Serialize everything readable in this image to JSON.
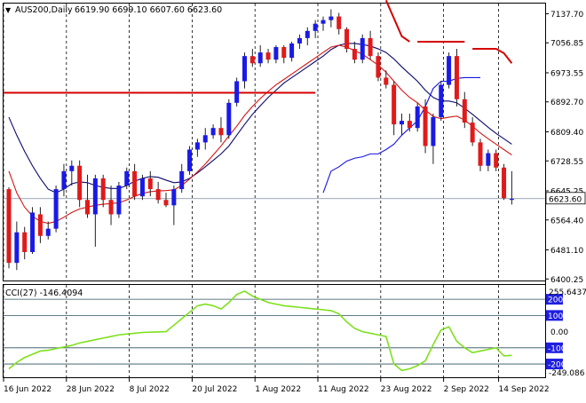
{
  "window": {
    "symbol_label": "AUS200,Daily",
    "ohlc_label": "6619.90 6699.10 6607.60 6623.60",
    "current_price": "6623.60"
  },
  "indicator": {
    "label": "CCI(27) -146.4094",
    "max_label": "255.6437",
    "min_label": "-249.086",
    "levels": [
      "200",
      "100",
      "0.00",
      "-100",
      "-200"
    ]
  },
  "colors": {
    "bull": "#1a1ae6",
    "bear": "#e01a1a",
    "sma_fast": "#0a0a6e",
    "ema_red": "#d41515",
    "stop_up": "#1414e0",
    "stop_down": "#d40000",
    "cci": "#7ee01e",
    "level_badge": "#1f1fe0"
  },
  "chart_data": {
    "type": "candlestick",
    "timeframe": "Daily",
    "y_ticks": [
      "7137.70",
      "7056.85",
      "6973.55",
      "6892.70",
      "6809.40",
      "6728.55",
      "6645.25",
      "6564.40",
      "6481.10",
      "6400.25"
    ],
    "y_range": [
      6396,
      7166
    ],
    "x_labels": [
      "16 Jun 2022",
      "28 Jun 2022",
      "8 Jul 2022",
      "20 Jul 2022",
      "1 Aug 2022",
      "11 Aug 2022",
      "23 Aug 2022",
      "2 Sep 2022",
      "14 Sep 2022"
    ],
    "candles": [
      [
        6650,
        6655,
        6430,
        6445
      ],
      [
        6445,
        6560,
        6425,
        6530
      ],
      [
        6530,
        6545,
        6455,
        6475
      ],
      [
        6475,
        6600,
        6470,
        6585
      ],
      [
        6580,
        6600,
        6500,
        6520
      ],
      [
        6520,
        6560,
        6510,
        6540
      ],
      [
        6540,
        6660,
        6530,
        6650
      ],
      [
        6650,
        6720,
        6630,
        6700
      ],
      [
        6700,
        6730,
        6660,
        6715
      ],
      [
        6715,
        6730,
        6600,
        6620
      ],
      [
        6620,
        6690,
        6570,
        6580
      ],
      [
        6580,
        6690,
        6490,
        6680
      ],
      [
        6680,
        6690,
        6600,
        6620
      ],
      [
        6620,
        6660,
        6550,
        6580
      ],
      [
        6580,
        6670,
        6570,
        6660
      ],
      [
        6660,
        6710,
        6650,
        6700
      ],
      [
        6700,
        6720,
        6620,
        6630
      ],
      [
        6630,
        6690,
        6620,
        6680
      ],
      [
        6680,
        6700,
        6630,
        6650
      ],
      [
        6650,
        6670,
        6610,
        6620
      ],
      [
        6620,
        6640,
        6600,
        6605
      ],
      [
        6605,
        6660,
        6550,
        6650
      ],
      [
        6650,
        6720,
        6640,
        6700
      ],
      [
        6700,
        6770,
        6690,
        6760
      ],
      [
        6760,
        6790,
        6740,
        6780
      ],
      [
        6780,
        6820,
        6760,
        6800
      ],
      [
        6800,
        6830,
        6790,
        6820
      ],
      [
        6820,
        6850,
        6780,
        6800
      ],
      [
        6800,
        6900,
        6790,
        6890
      ],
      [
        6890,
        6960,
        6880,
        6950
      ],
      [
        6950,
        7030,
        6930,
        7020
      ],
      [
        7020,
        7040,
        6990,
        7000
      ],
      [
        7000,
        7050,
        6990,
        7030
      ],
      [
        7030,
        7040,
        7000,
        7010
      ],
      [
        7010,
        7050,
        7000,
        7045
      ],
      [
        7045,
        7050,
        7000,
        7015
      ],
      [
        7015,
        7060,
        7005,
        7055
      ],
      [
        7055,
        7080,
        7040,
        7070
      ],
      [
        7070,
        7100,
        7050,
        7090
      ],
      [
        7090,
        7120,
        7070,
        7110
      ],
      [
        7110,
        7130,
        7090,
        7120
      ],
      [
        7120,
        7150,
        7100,
        7130
      ],
      [
        7130,
        7140,
        7080,
        7095
      ],
      [
        7095,
        7100,
        7030,
        7040
      ],
      [
        7040,
        7060,
        7000,
        7010
      ],
      [
        7010,
        7080,
        7000,
        7070
      ],
      [
        7070,
        7090,
        7010,
        7020
      ],
      [
        7020,
        7030,
        6950,
        6960
      ],
      [
        6960,
        6980,
        6930,
        6940
      ],
      [
        6940,
        6950,
        6800,
        6830
      ],
      [
        6830,
        6860,
        6800,
        6840
      ],
      [
        6840,
        6860,
        6810,
        6820
      ],
      [
        6820,
        6890,
        6810,
        6880
      ],
      [
        6880,
        6900,
        6750,
        6770
      ],
      [
        6770,
        6860,
        6720,
        6850
      ],
      [
        6850,
        6950,
        6840,
        6940
      ],
      [
        6940,
        7030,
        6930,
        7020
      ],
      [
        7020,
        7040,
        6880,
        6900
      ],
      [
        6900,
        6920,
        6820,
        6835
      ],
      [
        6835,
        6850,
        6770,
        6780
      ],
      [
        6780,
        6790,
        6700,
        6715
      ],
      [
        6715,
        6760,
        6700,
        6750
      ],
      [
        6750,
        6760,
        6700,
        6710
      ],
      [
        6710,
        6720,
        6620,
        6625
      ],
      [
        6620,
        6700,
        6607,
        6623
      ]
    ],
    "overlays": {
      "sma_fast": [
        6850,
        6800,
        6755,
        6715,
        6680,
        6650,
        6640,
        6650,
        6665,
        6670,
        6668,
        6660,
        6655,
        6652,
        6652,
        6660,
        6672,
        6680,
        6685,
        6683,
        6675,
        6668,
        6670,
        6680,
        6695,
        6712,
        6730,
        6748,
        6770,
        6800,
        6830,
        6858,
        6882,
        6905,
        6925,
        6945,
        6960,
        6975,
        6990,
        7005,
        7020,
        7038,
        7050,
        7055,
        7055,
        7052,
        7048,
        7040,
        7030,
        7012,
        6990,
        6970,
        6950,
        6925,
        6905,
        6895,
        6895,
        6890,
        6875,
        6858,
        6840,
        6822,
        6805,
        6790,
        6775
      ],
      "ema_red": [
        6700,
        6640,
        6600,
        6575,
        6560,
        6555,
        6560,
        6572,
        6585,
        6595,
        6600,
        6605,
        6608,
        6610,
        6612,
        6620,
        6630,
        6638,
        6643,
        6645,
        6646,
        6648,
        6660,
        6678,
        6698,
        6720,
        6745,
        6770,
        6798,
        6825,
        6855,
        6880,
        6902,
        6922,
        6940,
        6955,
        6970,
        6985,
        7000,
        7015,
        7030,
        7045,
        7050,
        7045,
        7035,
        7025,
        7010,
        6995,
        6975,
        6950,
        6925,
        6905,
        6890,
        6870,
        6852,
        6846,
        6850,
        6853,
        6842,
        6825,
        6806,
        6790,
        6775,
        6760,
        6745
      ],
      "stop_up_segment": {
        "x_range": [
          40,
          60
        ],
        "values": [
          6640,
          6700,
          6712,
          6728,
          6736,
          6740,
          6748,
          6748,
          6760,
          6775,
          6800,
          6820,
          6840,
          6880,
          6930,
          6950,
          6950,
          6958,
          6960,
          6960,
          6960
        ]
      },
      "stop_down_segments": [
        {
          "x_range": [
            0,
            39
          ],
          "value": 6918
        },
        {
          "x_range": [
            48,
            51
          ],
          "values": [
            7175,
            7125,
            7075,
            7060
          ]
        },
        {
          "x_range": [
            52,
            58
          ],
          "value": 7060
        },
        {
          "x_range": [
            59,
            64
          ],
          "values": [
            7040,
            7040,
            7040,
            7040,
            7028,
            7000
          ]
        }
      ]
    },
    "cci": {
      "name": "CCI(27)",
      "ylim": [
        -249.086,
        255.6437
      ],
      "levels": [
        200,
        100,
        0,
        -100,
        -200
      ],
      "values": [
        -230,
        -190,
        -160,
        -140,
        -120,
        -115,
        -105,
        -95,
        -85,
        -70,
        -60,
        -50,
        -40,
        -30,
        -20,
        -15,
        -10,
        -5,
        -3,
        -2,
        0,
        40,
        80,
        120,
        160,
        170,
        160,
        140,
        180,
        230,
        250,
        220,
        200,
        180,
        170,
        160,
        155,
        150,
        145,
        140,
        135,
        130,
        110,
        60,
        20,
        0,
        -10,
        -20,
        -30,
        -200,
        -240,
        -230,
        -210,
        -180,
        -80,
        10,
        30,
        -60,
        -100,
        -130,
        -120,
        -110,
        -100,
        -150,
        -146.4094
      ]
    }
  }
}
